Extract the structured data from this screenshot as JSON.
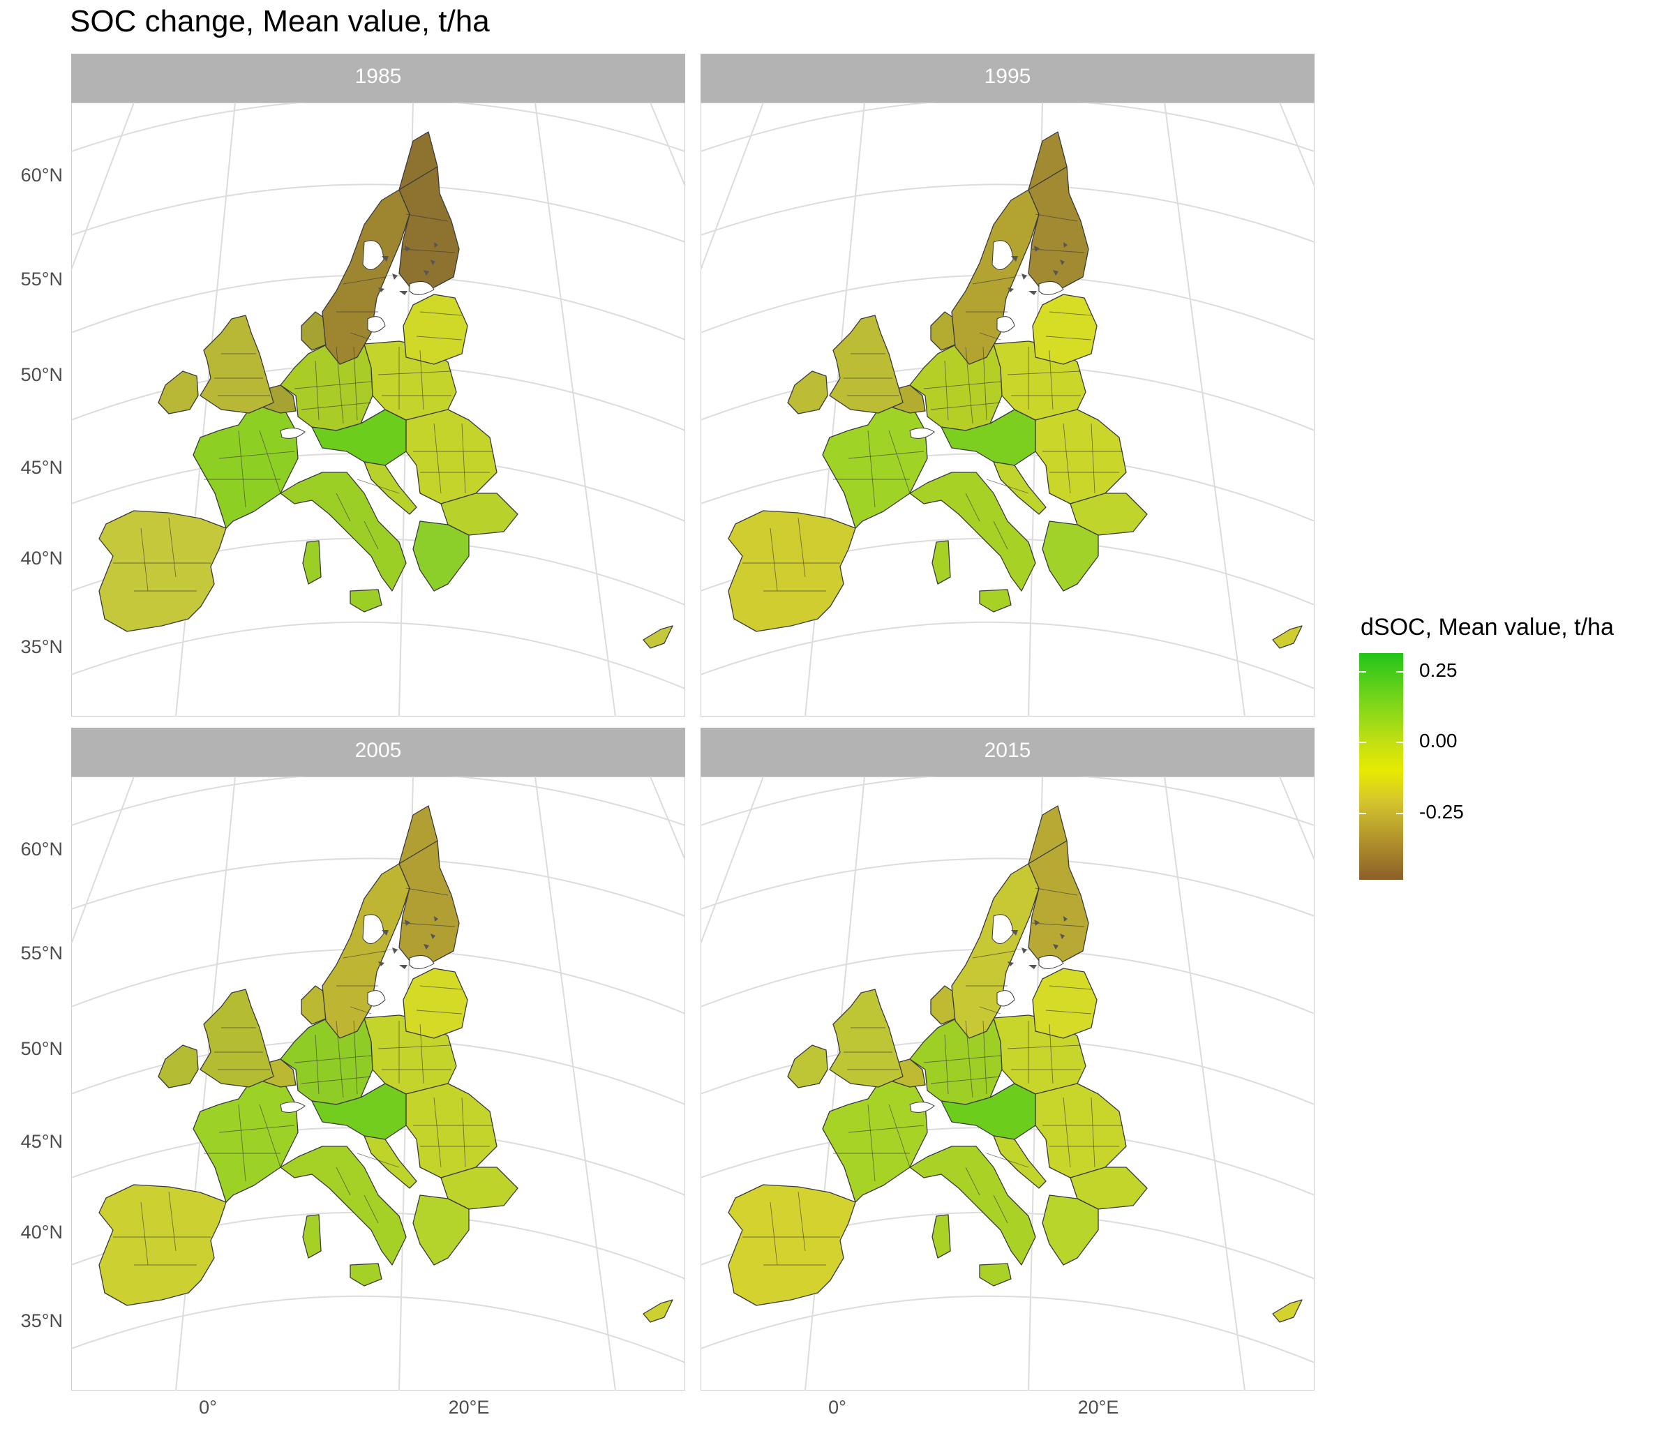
{
  "title": "SOC change, Mean value, t/ha",
  "panels": [
    {
      "label": "1985",
      "colors": {
        "west": "#b9b736",
        "iberia": "#c4c83a",
        "france": "#8dcf22",
        "central": "#a9cc27",
        "east": "#c4d42b",
        "italy": "#9ccf25",
        "balkans": "#b9d22b",
        "greece": "#8ccf2a",
        "sweden": "#9e8630",
        "finland": "#8e722f",
        "baltic": "#d0d928",
        "alps": "#6ccd1d",
        "benelux": "#a7a332"
      }
    },
    {
      "label": "1995",
      "colors": {
        "west": "#bcbc35",
        "iberia": "#cfcd30",
        "france": "#9fd325",
        "central": "#b5cf27",
        "east": "#cad72a",
        "italy": "#a8d126",
        "balkans": "#c0d52b",
        "greece": "#a0d22a",
        "sweden": "#b3a432",
        "finland": "#a18a31",
        "baltic": "#d7dd24",
        "alps": "#7ccf1f",
        "benelux": "#b2ad31"
      }
    },
    {
      "label": "2005",
      "colors": {
        "west": "#b4bd32",
        "iberia": "#ccd030",
        "france": "#9cd126",
        "central": "#8fcc25",
        "east": "#c4d42b",
        "italy": "#a5d126",
        "balkans": "#bfd42b",
        "greece": "#b4d42c",
        "sweden": "#beb633",
        "finland": "#b29f34",
        "baltic": "#d4da26",
        "alps": "#72cd1e",
        "benelux": "#bbb832"
      }
    },
    {
      "label": "2015",
      "colors": {
        "west": "#bfc636",
        "iberia": "#d4d22f",
        "france": "#a7d326",
        "central": "#9dcf25",
        "east": "#c8d62b",
        "italy": "#a9d126",
        "balkans": "#c2d52b",
        "greece": "#b8d52c",
        "sweden": "#c8c734",
        "finland": "#b7a934",
        "baltic": "#d5db26",
        "alps": "#6ccd1d",
        "benelux": "#bebb33"
      }
    }
  ],
  "axes": {
    "lat_labels": [
      "60°N",
      "55°N",
      "50°N",
      "45°N",
      "40°N",
      "35°N"
    ],
    "lon_labels": [
      "0°",
      "20°E"
    ]
  },
  "legend": {
    "title": "dSOC, Mean value, t/ha",
    "labels": [
      "0.25",
      "0.00",
      "-0.25"
    ],
    "high_color": "#22c41a",
    "mid_color": "#e6ea00",
    "low_color": "#8c5f28"
  }
}
